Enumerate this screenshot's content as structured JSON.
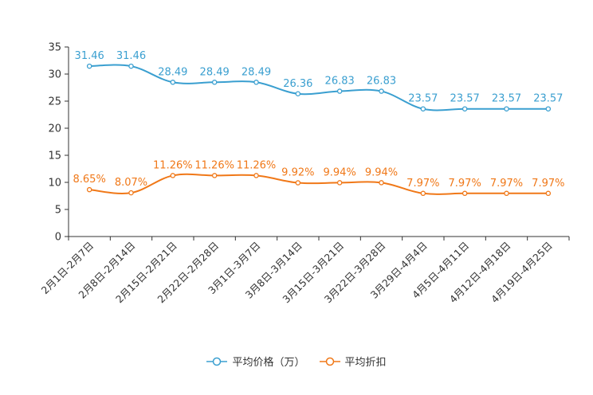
{
  "chart_data": {
    "type": "line",
    "title": "",
    "xlabel": "",
    "ylabel": "",
    "ylim": [
      0,
      35
    ],
    "yticks": [
      0,
      5,
      10,
      15,
      20,
      25,
      30,
      35
    ],
    "categories": [
      "2月1日-2月7日",
      "2月8日-2月14日",
      "2月15日-2月21日",
      "2月22日-2月28日",
      "3月1日-3月7日",
      "3月8日-3月14日",
      "3月15日-3月21日",
      "3月22日-3月28日",
      "3月29日-4月4日",
      "4月5日-4月11日",
      "4月12日-4月18日",
      "4月19日-4月25日"
    ],
    "series": [
      {
        "name": "平均价格（万）",
        "color": "#3a9fd0",
        "values": [
          31.46,
          31.46,
          28.49,
          28.49,
          28.49,
          26.36,
          26.83,
          26.83,
          23.57,
          23.57,
          23.57,
          23.57
        ],
        "labels": [
          "31.46",
          "31.46",
          "28.49",
          "28.49",
          "28.49",
          "26.36",
          "26.83",
          "26.83",
          "23.57",
          "23.57",
          "23.57",
          "23.57"
        ]
      },
      {
        "name": "平均折扣",
        "color": "#f07818",
        "values": [
          8.65,
          8.07,
          11.26,
          11.26,
          11.26,
          9.92,
          9.94,
          9.94,
          7.97,
          7.97,
          7.97,
          7.97
        ],
        "labels": [
          "8.65%",
          "8.07%",
          "11.26%",
          "11.26%",
          "11.26%",
          "9.92%",
          "9.94%",
          "9.94%",
          "7.97%",
          "7.97%",
          "7.97%",
          "7.97%"
        ]
      }
    ],
    "legend_position": "bottom"
  }
}
